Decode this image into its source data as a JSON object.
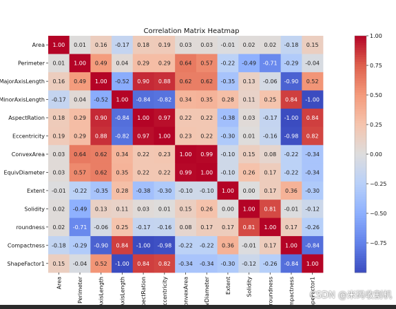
{
  "chart_data": {
    "type": "heatmap",
    "title": "Correlation Matrix Heatmap",
    "labels": [
      "Area",
      "Perimeter",
      "MajorAxisLength",
      "MinorAxisLength",
      "AspectRation",
      "Eccentricity",
      "ConvexArea",
      "EquivDiameter",
      "Extent",
      "Solidity",
      "roundness",
      "Compactness",
      "ShapeFactor1"
    ],
    "values": [
      [
        1.0,
        0.01,
        0.16,
        -0.17,
        0.18,
        0.19,
        0.03,
        0.03,
        -0.01,
        0.02,
        0.02,
        -0.18,
        0.15
      ],
      [
        0.01,
        1.0,
        0.49,
        0.04,
        0.29,
        0.29,
        0.64,
        0.57,
        -0.22,
        -0.49,
        -0.71,
        -0.29,
        -0.04
      ],
      [
        0.16,
        0.49,
        1.0,
        -0.52,
        0.9,
        0.88,
        0.62,
        0.62,
        -0.35,
        0.13,
        -0.06,
        -0.9,
        0.52
      ],
      [
        -0.17,
        0.04,
        -0.52,
        1.0,
        -0.84,
        -0.82,
        0.34,
        0.35,
        0.28,
        0.11,
        0.25,
        0.84,
        -1.0
      ],
      [
        0.18,
        0.29,
        0.9,
        -0.84,
        1.0,
        0.97,
        0.22,
        0.22,
        -0.38,
        0.03,
        -0.17,
        -1.0,
        0.84
      ],
      [
        0.19,
        0.29,
        0.88,
        -0.82,
        0.97,
        1.0,
        0.23,
        0.22,
        -0.3,
        0.01,
        -0.16,
        -0.98,
        0.82
      ],
      [
        0.03,
        0.64,
        0.62,
        0.34,
        0.22,
        0.23,
        1.0,
        0.99,
        -0.1,
        0.15,
        0.08,
        -0.22,
        -0.34
      ],
      [
        0.03,
        0.57,
        0.62,
        0.35,
        0.22,
        0.22,
        0.99,
        1.0,
        -0.1,
        0.26,
        0.17,
        -0.22,
        -0.34
      ],
      [
        -0.01,
        -0.22,
        -0.35,
        0.28,
        -0.38,
        -0.3,
        -0.1,
        -0.1,
        1.0,
        0.0,
        0.17,
        0.36,
        -0.3
      ],
      [
        0.02,
        -0.49,
        0.13,
        0.11,
        0.03,
        0.01,
        0.15,
        0.26,
        0.0,
        1.0,
        0.81,
        -0.01,
        -0.12
      ],
      [
        0.02,
        -0.71,
        -0.06,
        0.25,
        -0.17,
        -0.16,
        0.08,
        0.17,
        0.17,
        0.81,
        1.0,
        0.17,
        -0.26
      ],
      [
        -0.18,
        -0.29,
        -0.9,
        0.84,
        -1.0,
        -0.98,
        -0.22,
        -0.22,
        0.36,
        -0.01,
        0.17,
        1.0,
        -0.84
      ],
      [
        0.15,
        -0.04,
        0.52,
        -1.0,
        0.84,
        0.82,
        -0.34,
        -0.34,
        -0.3,
        -0.12,
        -0.26,
        -0.84,
        1.0
      ]
    ],
    "colorbar": {
      "range": [
        -1.0,
        1.0
      ],
      "ticks": [
        1.0,
        0.75,
        0.5,
        0.25,
        0.0,
        -0.25,
        -0.5,
        -0.75
      ],
      "tick_labels": [
        "1.00",
        "0.75",
        "0.50",
        "0.25",
        "0.00",
        "−0.25",
        "−0.50",
        "−0.75"
      ],
      "colormap": "coolwarm",
      "color_low": "#3b4cc0",
      "color_mid": "#dddddd",
      "color_high": "#b40426"
    },
    "annotations": true,
    "number_format": "2 decimals"
  },
  "watermark": "CSDN @米码收割机"
}
